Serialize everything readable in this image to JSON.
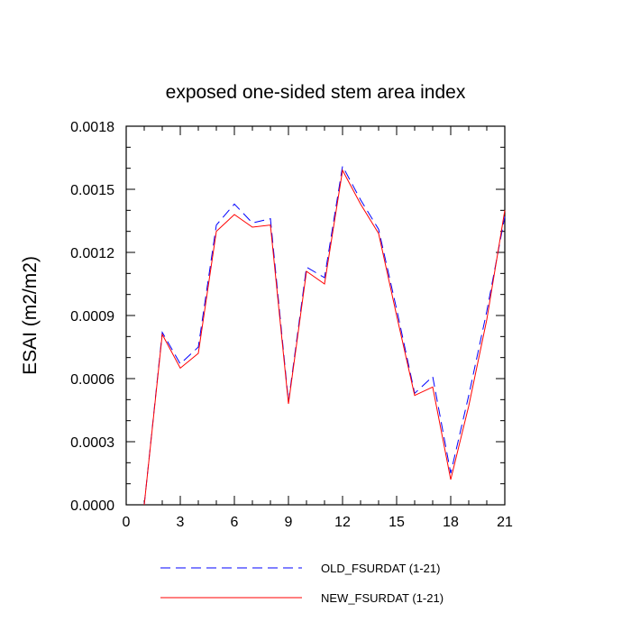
{
  "chart_data": {
    "type": "line",
    "title": "exposed one-sided stem area index",
    "xlabel": "",
    "ylabel": "ESAI  (m2/m2)",
    "xlim": [
      0,
      21
    ],
    "ylim": [
      0,
      0.0018
    ],
    "xticks": [
      "0",
      "3",
      "6",
      "9",
      "12",
      "15",
      "18",
      "21"
    ],
    "yticks": [
      "0.0000",
      "0.0003",
      "0.0006",
      "0.0009",
      "0.0012",
      "0.0015",
      "0.0018"
    ],
    "x": [
      1,
      2,
      3,
      4,
      5,
      6,
      7,
      8,
      9,
      10,
      11,
      12,
      13,
      14,
      15,
      16,
      17,
      18,
      19,
      20,
      21
    ],
    "series": [
      {
        "name": "OLD_FSURDAT (1-21)",
        "color": "#0000ff",
        "dash": "dashed",
        "values": [
          0.0,
          0.00082,
          0.00067,
          0.00075,
          0.00133,
          0.00143,
          0.00134,
          0.00136,
          0.00049,
          0.00113,
          0.00108,
          0.00161,
          0.00145,
          0.00131,
          0.00093,
          0.00053,
          0.00061,
          0.00015,
          0.00052,
          0.00092,
          0.00137
        ]
      },
      {
        "name": "NEW_FSURDAT (1-21)",
        "color": "#ff0000",
        "dash": "solid",
        "values": [
          0.0,
          0.00081,
          0.00065,
          0.00072,
          0.0013,
          0.00138,
          0.00132,
          0.00133,
          0.00048,
          0.00111,
          0.00105,
          0.00159,
          0.00143,
          0.00129,
          0.0009,
          0.00052,
          0.00056,
          0.00012,
          0.00047,
          0.00088,
          0.0014
        ]
      }
    ],
    "legend_position": "bottom",
    "grid": false
  }
}
